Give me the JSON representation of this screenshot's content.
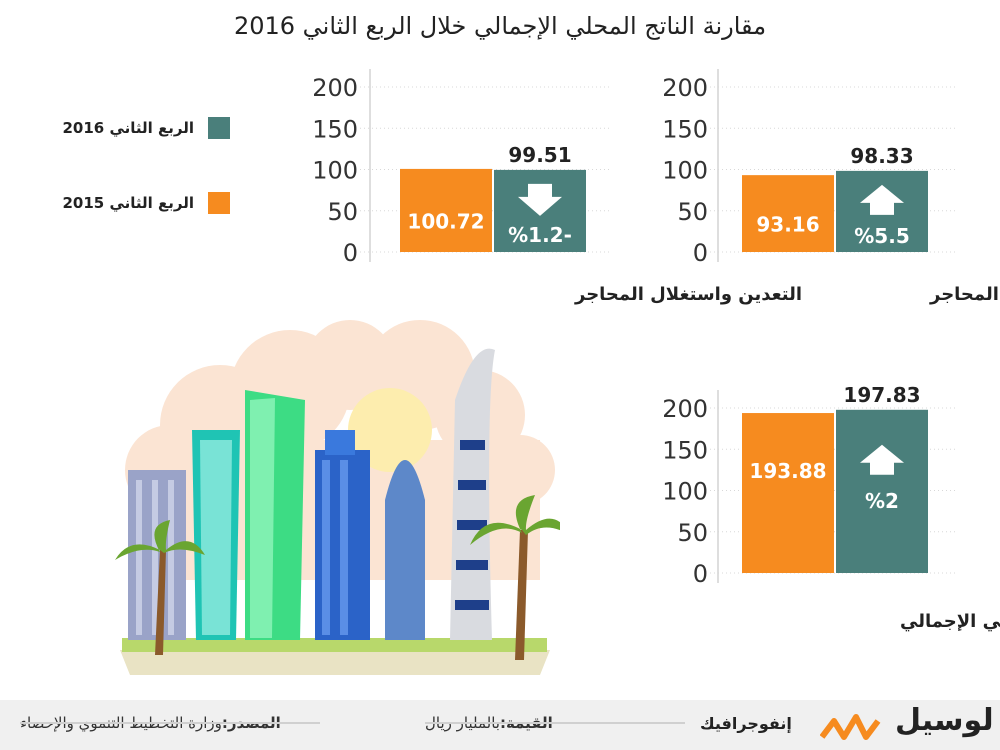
{
  "title": "مقارنة الناتج المحلي الإجمالي خلال الربع الثاني 2016",
  "colors": {
    "q2_2016": "#4a7f7b",
    "q2_2015": "#f68b1f"
  },
  "legend": [
    {
      "label": "الربع الثاني 2016",
      "color": "#4a7f7b"
    },
    {
      "label": "الربع الثاني 2015",
      "color": "#f68b1f"
    }
  ],
  "chart_data": [
    {
      "type": "bar",
      "title": "غير التعدين واستغلال المحاجر",
      "ylim": [
        0,
        200
      ],
      "yticks": [
        0,
        50,
        100,
        150,
        200
      ],
      "series": [
        {
          "name": "الربع الثاني 2015",
          "values": [
            93.16
          ]
        },
        {
          "name": "الربع الثاني 2016",
          "values": [
            98.33
          ]
        }
      ],
      "change": {
        "text": "%5.5",
        "direction": "up"
      }
    },
    {
      "type": "bar",
      "title": "التعدين واستغلال المحاجر",
      "ylim": [
        0,
        200
      ],
      "yticks": [
        0,
        50,
        100,
        150,
        200
      ],
      "series": [
        {
          "name": "الربع الثاني 2015",
          "values": [
            100.72
          ]
        },
        {
          "name": "الربع الثاني 2016",
          "values": [
            99.51
          ]
        }
      ],
      "change": {
        "text": "%1.2-",
        "direction": "down"
      }
    },
    {
      "type": "bar",
      "title": "الناتج المحلي الإجمالي",
      "ylim": [
        0,
        200
      ],
      "yticks": [
        0,
        50,
        100,
        150,
        200
      ],
      "series": [
        {
          "name": "الربع الثاني 2015",
          "values": [
            193.88
          ]
        },
        {
          "name": "الربع الثاني 2016",
          "values": [
            197.83
          ]
        }
      ],
      "change": {
        "text": "%2",
        "direction": "up"
      }
    }
  ],
  "footer": {
    "source_label": "المصدر:",
    "source_value": "وزارة التخطيط التنموي والإحصاء",
    "value_label": "القيمة:",
    "value_value": "بالمليار ريال",
    "section": "إنفوجرافيك",
    "brand": "لوسيل"
  }
}
